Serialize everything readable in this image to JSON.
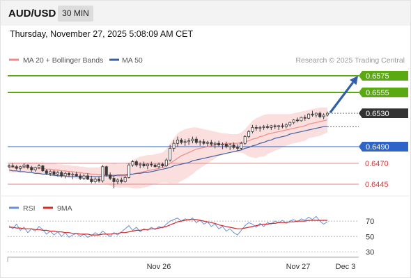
{
  "header": {
    "symbol": "AUD/USD",
    "timeframe": "30 MIN",
    "timestamp": "Thursday, November 27, 2025 5:08:09 AM CET"
  },
  "legend": {
    "ma_bollinger": "MA 20 + Bollinger Bands",
    "ma50": "MA 50",
    "source": "Research © 2025 Trading Central",
    "rsi": "RSI",
    "rsi_ma": "9MA"
  },
  "colors": {
    "candle": "#3a3a3a",
    "ma20": "#f08a8a",
    "bollinger_fill": "#f9d3d3",
    "ma50": "#3d5fa3",
    "resistance": "#5aa812",
    "pivot": "#2e64c8",
    "support": "#e08a8a",
    "last_price": "#333333",
    "arrow": "#2f5fa8",
    "rsi": "#6a8fd8",
    "rsi_ma": "#d42828"
  },
  "chart_data": [
    {
      "type": "candlestick",
      "ylim": [
        0.643,
        0.6585
      ],
      "x_labels": [
        "Nov 26",
        "Nov 27",
        "Dec 3"
      ],
      "candles": [
        [
          0.6466,
          0.6469,
          0.6464,
          0.6467
        ],
        [
          0.6467,
          0.647,
          0.6465,
          0.6466
        ],
        [
          0.6466,
          0.6468,
          0.6462,
          0.6464
        ],
        [
          0.6464,
          0.6467,
          0.6461,
          0.6466
        ],
        [
          0.6466,
          0.647,
          0.6464,
          0.6468
        ],
        [
          0.6468,
          0.6469,
          0.6463,
          0.6465
        ],
        [
          0.6465,
          0.6467,
          0.646,
          0.6462
        ],
        [
          0.6462,
          0.6466,
          0.646,
          0.6465
        ],
        [
          0.6465,
          0.6469,
          0.6463,
          0.6467
        ],
        [
          0.6467,
          0.6468,
          0.646,
          0.6461
        ],
        [
          0.6461,
          0.6463,
          0.6456,
          0.6458
        ],
        [
          0.6458,
          0.6462,
          0.6455,
          0.646
        ],
        [
          0.646,
          0.6462,
          0.6455,
          0.6457
        ],
        [
          0.6457,
          0.6461,
          0.6454,
          0.6459
        ],
        [
          0.6459,
          0.6461,
          0.6453,
          0.6455
        ],
        [
          0.6455,
          0.646,
          0.6452,
          0.6458
        ],
        [
          0.6458,
          0.646,
          0.6454,
          0.6456
        ],
        [
          0.6456,
          0.6459,
          0.6451,
          0.6457
        ],
        [
          0.6457,
          0.646,
          0.6454,
          0.6455
        ],
        [
          0.6455,
          0.6458,
          0.645,
          0.6452
        ],
        [
          0.6452,
          0.6457,
          0.645,
          0.6455
        ],
        [
          0.6455,
          0.6458,
          0.645,
          0.6451
        ],
        [
          0.6451,
          0.6455,
          0.6446,
          0.6448
        ],
        [
          0.6448,
          0.6453,
          0.6446,
          0.6451
        ],
        [
          0.6451,
          0.6454,
          0.6447,
          0.6449
        ],
        [
          0.6449,
          0.6468,
          0.6447,
          0.6466
        ],
        [
          0.6466,
          0.6467,
          0.6454,
          0.6456
        ],
        [
          0.6456,
          0.6459,
          0.645,
          0.6452
        ],
        [
          0.6452,
          0.6455,
          0.644,
          0.6448
        ],
        [
          0.6448,
          0.6452,
          0.6445,
          0.645
        ],
        [
          0.645,
          0.6453,
          0.6446,
          0.6448
        ],
        [
          0.6448,
          0.6455,
          0.6447,
          0.6453
        ],
        [
          0.6453,
          0.647,
          0.6452,
          0.6468
        ],
        [
          0.6468,
          0.6474,
          0.6466,
          0.6472
        ],
        [
          0.6472,
          0.6474,
          0.6466,
          0.6468
        ],
        [
          0.6468,
          0.6471,
          0.6464,
          0.6469
        ],
        [
          0.6469,
          0.6472,
          0.6465,
          0.6467
        ],
        [
          0.6467,
          0.647,
          0.6463,
          0.6469
        ],
        [
          0.6469,
          0.6472,
          0.6466,
          0.6468
        ],
        [
          0.6468,
          0.647,
          0.6465,
          0.6466
        ],
        [
          0.6466,
          0.6471,
          0.6464,
          0.6469
        ],
        [
          0.6469,
          0.6471,
          0.6465,
          0.6467
        ],
        [
          0.6467,
          0.6476,
          0.6466,
          0.6474
        ],
        [
          0.6474,
          0.6492,
          0.6472,
          0.6488
        ],
        [
          0.6488,
          0.6498,
          0.6484,
          0.6494
        ],
        [
          0.6494,
          0.6502,
          0.649,
          0.6498
        ],
        [
          0.6498,
          0.65,
          0.6493,
          0.6495
        ],
        [
          0.6495,
          0.6499,
          0.6491,
          0.6496
        ],
        [
          0.6496,
          0.65,
          0.6492,
          0.6497
        ],
        [
          0.6497,
          0.6502,
          0.6494,
          0.6499
        ],
        [
          0.6499,
          0.6502,
          0.6493,
          0.6495
        ],
        [
          0.6495,
          0.6498,
          0.6491,
          0.6496
        ],
        [
          0.6496,
          0.6499,
          0.6492,
          0.6494
        ],
        [
          0.6494,
          0.6497,
          0.649,
          0.6495
        ],
        [
          0.6495,
          0.6498,
          0.6491,
          0.6493
        ],
        [
          0.6493,
          0.6496,
          0.6488,
          0.6494
        ],
        [
          0.6494,
          0.6497,
          0.649,
          0.6492
        ],
        [
          0.6492,
          0.6495,
          0.6487,
          0.6493
        ],
        [
          0.6493,
          0.6496,
          0.6488,
          0.649
        ],
        [
          0.649,
          0.6494,
          0.6486,
          0.6492
        ],
        [
          0.6492,
          0.6495,
          0.6487,
          0.6489
        ],
        [
          0.6489,
          0.6493,
          0.6485,
          0.6488
        ],
        [
          0.6488,
          0.6496,
          0.6486,
          0.6494
        ],
        [
          0.6494,
          0.6504,
          0.6492,
          0.6502
        ],
        [
          0.6502,
          0.651,
          0.65,
          0.6508
        ],
        [
          0.6508,
          0.6516,
          0.6506,
          0.6513
        ],
        [
          0.6513,
          0.6516,
          0.6509,
          0.6512
        ],
        [
          0.6512,
          0.6515,
          0.6508,
          0.6513
        ],
        [
          0.6513,
          0.6516,
          0.651,
          0.6514
        ],
        [
          0.6514,
          0.6517,
          0.6511,
          0.6513
        ],
        [
          0.6513,
          0.6516,
          0.651,
          0.6515
        ],
        [
          0.6515,
          0.6517,
          0.6511,
          0.6514
        ],
        [
          0.6514,
          0.6516,
          0.651,
          0.6515
        ],
        [
          0.6515,
          0.6518,
          0.6512,
          0.6514
        ],
        [
          0.6514,
          0.6518,
          0.6512,
          0.6516
        ],
        [
          0.6516,
          0.652,
          0.6514,
          0.6519
        ],
        [
          0.6519,
          0.6523,
          0.6517,
          0.6522
        ],
        [
          0.6522,
          0.6525,
          0.6519,
          0.6521
        ],
        [
          0.6521,
          0.6526,
          0.652,
          0.6525
        ],
        [
          0.6525,
          0.6528,
          0.6521,
          0.6524
        ],
        [
          0.6524,
          0.653,
          0.6523,
          0.6529
        ],
        [
          0.6529,
          0.6533,
          0.6526,
          0.6528
        ],
        [
          0.6528,
          0.6531,
          0.6525,
          0.653
        ],
        [
          0.653,
          0.6532,
          0.6524,
          0.6526
        ],
        [
          0.6526,
          0.653,
          0.6523,
          0.6528
        ],
        [
          0.6528,
          0.6532,
          0.6526,
          0.653
        ]
      ],
      "ma20": [
        0.6465,
        0.6465,
        0.6465,
        0.6465,
        0.6465,
        0.6465,
        0.6465,
        0.6464,
        0.6464,
        0.6464,
        0.6463,
        0.6463,
        0.6462,
        0.6462,
        0.6461,
        0.6461,
        0.646,
        0.646,
        0.6459,
        0.6459,
        0.6458,
        0.6458,
        0.6457,
        0.6457,
        0.6456,
        0.6457,
        0.6457,
        0.6456,
        0.6456,
        0.6455,
        0.6455,
        0.6455,
        0.6456,
        0.6457,
        0.6458,
        0.6459,
        0.646,
        0.6461,
        0.6462,
        0.6463,
        0.6464,
        0.6465,
        0.6467,
        0.647,
        0.6473,
        0.6476,
        0.6479,
        0.6481,
        0.6483,
        0.6485,
        0.6487,
        0.6488,
        0.6489,
        0.649,
        0.6491,
        0.6492,
        0.6493,
        0.6493,
        0.6494,
        0.6494,
        0.6494,
        0.6494,
        0.6495,
        0.6496,
        0.6497,
        0.6499,
        0.65,
        0.6502,
        0.6503,
        0.6505,
        0.6506,
        0.6507,
        0.6508,
        0.6509,
        0.651,
        0.6511,
        0.6512,
        0.6513,
        0.6514,
        0.6515,
        0.6517,
        0.6518,
        0.6519,
        0.652,
        0.6521,
        0.6522
      ],
      "bb_upper": [
        0.6471,
        0.6471,
        0.6471,
        0.6471,
        0.6471,
        0.6471,
        0.6471,
        0.6471,
        0.6471,
        0.6471,
        0.647,
        0.647,
        0.647,
        0.6469,
        0.6469,
        0.6468,
        0.6468,
        0.6467,
        0.6467,
        0.6466,
        0.6466,
        0.6465,
        0.6465,
        0.6465,
        0.6465,
        0.6468,
        0.6469,
        0.6469,
        0.647,
        0.6469,
        0.6469,
        0.6469,
        0.6471,
        0.6474,
        0.6476,
        0.6478,
        0.6479,
        0.648,
        0.648,
        0.6481,
        0.6482,
        0.6483,
        0.6487,
        0.6494,
        0.65,
        0.6506,
        0.6509,
        0.6511,
        0.6512,
        0.6513,
        0.6513,
        0.6512,
        0.6511,
        0.651,
        0.6509,
        0.6508,
        0.6507,
        0.6506,
        0.6506,
        0.6505,
        0.6505,
        0.6505,
        0.6507,
        0.6511,
        0.6516,
        0.6521,
        0.6524,
        0.6526,
        0.6528,
        0.6529,
        0.6529,
        0.6529,
        0.6529,
        0.6529,
        0.6529,
        0.6529,
        0.653,
        0.6531,
        0.6532,
        0.6533,
        0.6534,
        0.6535,
        0.6536,
        0.6537,
        0.6537,
        0.6537
      ],
      "bb_lower": [
        0.6459,
        0.6459,
        0.6459,
        0.6459,
        0.6459,
        0.6459,
        0.6459,
        0.6457,
        0.6457,
        0.6457,
        0.6456,
        0.6456,
        0.6454,
        0.6455,
        0.6453,
        0.6454,
        0.6452,
        0.6453,
        0.6451,
        0.6452,
        0.645,
        0.6451,
        0.6449,
        0.6449,
        0.6447,
        0.6446,
        0.6445,
        0.6443,
        0.6442,
        0.6441,
        0.6441,
        0.6441,
        0.6441,
        0.644,
        0.644,
        0.644,
        0.6441,
        0.6442,
        0.6444,
        0.6445,
        0.6446,
        0.6447,
        0.6447,
        0.6446,
        0.6446,
        0.6446,
        0.6449,
        0.6451,
        0.6454,
        0.6457,
        0.6461,
        0.6464,
        0.6467,
        0.647,
        0.6473,
        0.6476,
        0.6479,
        0.648,
        0.6482,
        0.6483,
        0.6483,
        0.6483,
        0.6483,
        0.6481,
        0.6478,
        0.6477,
        0.6476,
        0.6478,
        0.6478,
        0.6481,
        0.6483,
        0.6485,
        0.6487,
        0.6489,
        0.6491,
        0.6493,
        0.6494,
        0.6495,
        0.6496,
        0.6497,
        0.65,
        0.6501,
        0.6502,
        0.6503,
        0.6505,
        0.6507
      ],
      "ma50": [
        0.6462,
        0.6461,
        0.6461,
        0.646,
        0.646,
        0.6459,
        0.6459,
        0.6458,
        0.6458,
        0.6457,
        0.6457,
        0.6456,
        0.6456,
        0.6455,
        0.6455,
        0.6455,
        0.6454,
        0.6454,
        0.6454,
        0.6454,
        0.6454,
        0.6454,
        0.6454,
        0.6454,
        0.6454,
        0.6455,
        0.6455,
        0.6455,
        0.6455,
        0.6456,
        0.6456,
        0.6456,
        0.6457,
        0.6457,
        0.6458,
        0.6458,
        0.6459,
        0.6459,
        0.646,
        0.6461,
        0.6462,
        0.6463,
        0.6464,
        0.6465,
        0.6467,
        0.6468,
        0.6469,
        0.647,
        0.6471,
        0.6473,
        0.6474,
        0.6475,
        0.6476,
        0.6477,
        0.6478,
        0.6479,
        0.648,
        0.6481,
        0.6482,
        0.6483,
        0.6484,
        0.6485,
        0.6486,
        0.6488,
        0.6489,
        0.6491,
        0.6492,
        0.6494,
        0.6495,
        0.6497,
        0.6498,
        0.65,
        0.6501,
        0.6502,
        0.6503,
        0.6505,
        0.6506,
        0.6507,
        0.6508,
        0.6509,
        0.651,
        0.6511,
        0.6512,
        0.6513,
        0.6514,
        0.6514
      ],
      "levels": [
        {
          "value": 0.6575,
          "label": "0.6575",
          "kind": "resistance"
        },
        {
          "value": 0.6555,
          "label": "0.6555",
          "kind": "resistance"
        },
        {
          "value": 0.649,
          "label": "0.6490",
          "kind": "pivot"
        },
        {
          "value": 0.647,
          "label": "0.6470",
          "kind": "support"
        },
        {
          "value": 0.6445,
          "label": "0.6445",
          "kind": "support"
        }
      ],
      "last_price": {
        "value": 0.653,
        "label": "0.6530"
      },
      "ma50_end": 0.6514,
      "arrow": {
        "from": 0.653,
        "to": 0.6575
      }
    },
    {
      "type": "line",
      "ylim": [
        25,
        80
      ],
      "yticks": [
        70,
        50,
        30
      ],
      "series": [
        {
          "name": "RSI",
          "values": [
            64,
            60,
            66,
            58,
            62,
            55,
            60,
            57,
            63,
            59,
            53,
            57,
            52,
            56,
            50,
            55,
            49,
            52,
            54,
            50,
            53,
            49,
            51,
            55,
            52,
            57,
            53,
            50,
            55,
            52,
            56,
            60,
            64,
            58,
            62,
            56,
            60,
            58,
            62,
            59,
            63,
            61,
            66,
            70,
            72,
            74,
            70,
            73,
            71,
            74,
            68,
            71,
            66,
            69,
            63,
            66,
            60,
            63,
            57,
            60,
            55,
            52,
            58,
            64,
            68,
            66,
            62,
            67,
            63,
            68,
            66,
            70,
            68,
            71,
            67,
            70,
            72,
            69,
            73,
            71,
            75,
            72,
            76,
            70,
            66,
            69
          ]
        },
        {
          "name": "9MA",
          "values": [
            62,
            62,
            61,
            61,
            60,
            60,
            60,
            59,
            59,
            58,
            58,
            57,
            57,
            56,
            56,
            55,
            55,
            54,
            54,
            53,
            53,
            53,
            52,
            52,
            52,
            53,
            53,
            53,
            54,
            54,
            55,
            55,
            56,
            57,
            58,
            58,
            59,
            59,
            60,
            60,
            61,
            62,
            63,
            65,
            67,
            69,
            70,
            71,
            72,
            72,
            72,
            71,
            70,
            69,
            68,
            67,
            65,
            64,
            63,
            62,
            61,
            60,
            60,
            61,
            62,
            63,
            64,
            65,
            66,
            66,
            67,
            67,
            68,
            68,
            68,
            69,
            69,
            70,
            70,
            70,
            71,
            71,
            71,
            71,
            71,
            71
          ]
        }
      ]
    }
  ]
}
